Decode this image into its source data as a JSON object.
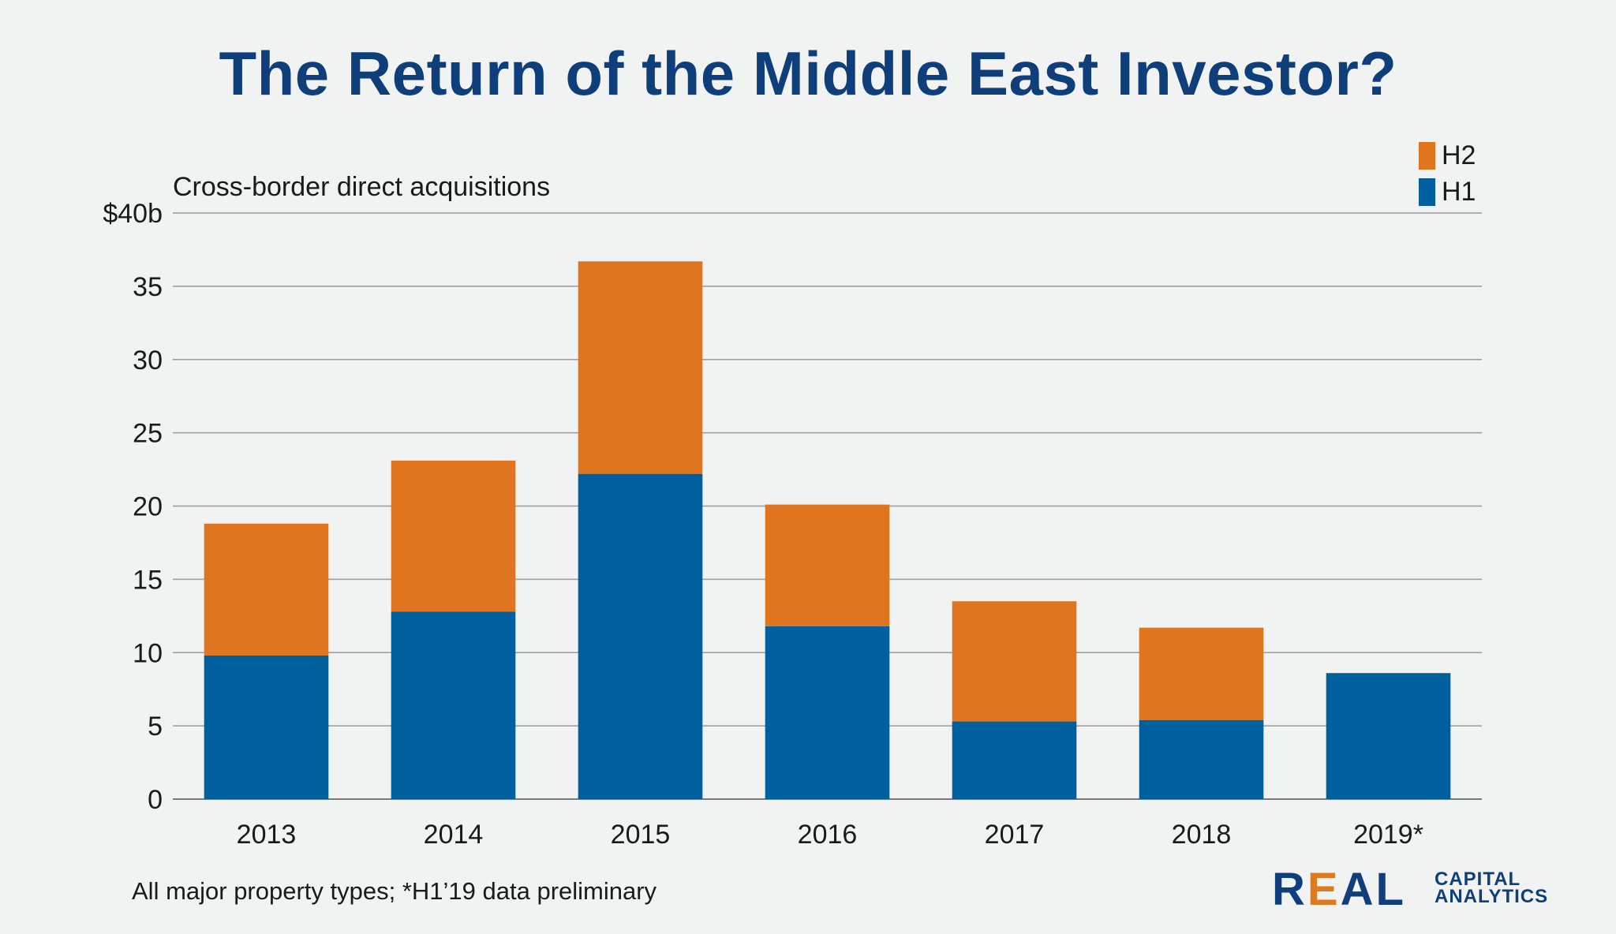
{
  "chart_data": {
    "type": "bar",
    "stacked": true,
    "title": "The Return of the Middle East Investor?",
    "subtitle": "Cross-border direct acquisitions",
    "categories": [
      "2013",
      "2014",
      "2015",
      "2016",
      "2017",
      "2018",
      "2019*"
    ],
    "series": [
      {
        "name": "H1",
        "color": "#00609e",
        "values": [
          9.8,
          12.8,
          22.2,
          11.8,
          5.3,
          5.4,
          8.6
        ]
      },
      {
        "name": "H2",
        "color": "#df761f",
        "values": [
          9.0,
          10.3,
          14.5,
          8.3,
          8.2,
          6.3,
          0
        ]
      }
    ],
    "ylim": [
      0,
      40
    ],
    "yticks": [
      0,
      5,
      10,
      15,
      20,
      25,
      30,
      35,
      40
    ],
    "ytick_labels": [
      "0",
      "5",
      "10",
      "15",
      "20",
      "25",
      "30",
      "35",
      "$40b"
    ],
    "grid": true,
    "legend_position": "top-right",
    "footnote": "All major property types; *H1’19 data preliminary"
  },
  "legend": [
    {
      "label": "H2",
      "color": "#df761f"
    },
    {
      "label": "H1",
      "color": "#00609e"
    }
  ],
  "logo": {
    "word": "REAL",
    "line1": "CAPITAL",
    "line2": "ANALYTICS"
  }
}
